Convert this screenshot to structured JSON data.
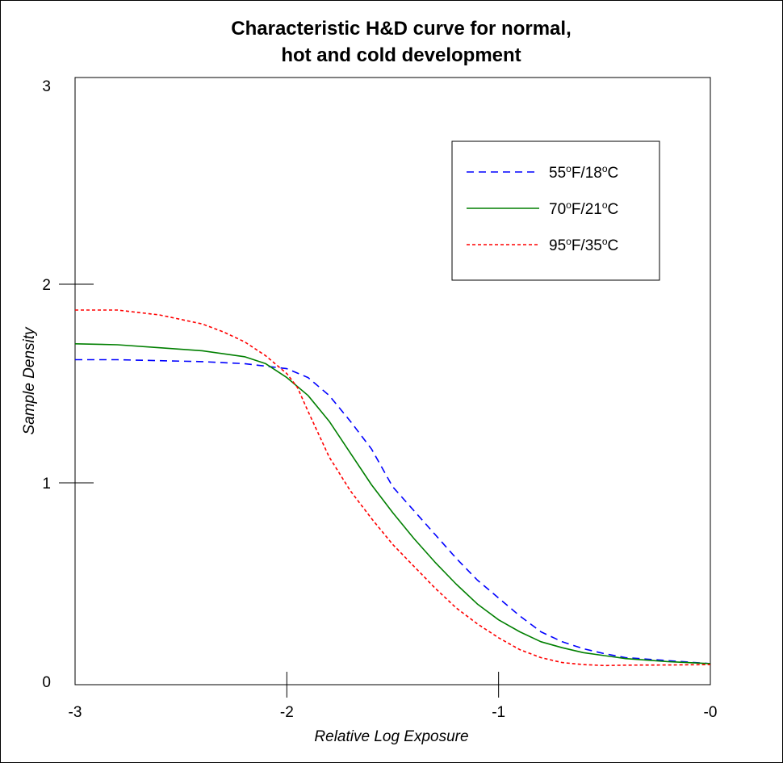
{
  "chart_data": {
    "type": "line",
    "title_lines": [
      "Characteristic H&D curve for normal,",
      "hot  and cold development"
    ],
    "xlabel": "Relative Log Exposure",
    "ylabel": "Sample Density",
    "xlim": [
      -3,
      0
    ],
    "ylim": [
      0,
      3
    ],
    "x_tick_labels": [
      "-3",
      "-2",
      "-1",
      "-0"
    ],
    "y_tick_labels": [
      "0",
      "1",
      "2",
      "3"
    ],
    "grid": false,
    "legend_position": "top-right",
    "series": [
      {
        "name": "55oF/18oC",
        "legend_parts": [
          " 55",
          "o",
          "F/18",
          "o",
          "C"
        ],
        "color": "#0000ff",
        "dash": "dashed",
        "points": [
          [
            -3.0,
            1.62
          ],
          [
            -2.8,
            1.62
          ],
          [
            -2.6,
            1.615
          ],
          [
            -2.4,
            1.61
          ],
          [
            -2.2,
            1.6
          ],
          [
            -2.0,
            1.575
          ],
          [
            -1.9,
            1.53
          ],
          [
            -1.8,
            1.44
          ],
          [
            -1.7,
            1.31
          ],
          [
            -1.6,
            1.17
          ],
          [
            -1.5,
            0.98
          ],
          [
            -1.4,
            0.86
          ],
          [
            -1.3,
            0.74
          ],
          [
            -1.2,
            0.62
          ],
          [
            -1.1,
            0.51
          ],
          [
            -1.0,
            0.42
          ],
          [
            -0.9,
            0.33
          ],
          [
            -0.8,
            0.25
          ],
          [
            -0.7,
            0.2
          ],
          [
            -0.6,
            0.165
          ],
          [
            -0.5,
            0.14
          ],
          [
            -0.4,
            0.12
          ],
          [
            -0.2,
            0.105
          ],
          [
            0.0,
            0.09
          ]
        ]
      },
      {
        "name": "70oF/21oC",
        "legend_parts": [
          " 70",
          "o",
          "F/21",
          "o",
          "C"
        ],
        "color": "#007f00",
        "dash": "solid",
        "points": [
          [
            -3.0,
            1.7
          ],
          [
            -2.8,
            1.695
          ],
          [
            -2.6,
            1.68
          ],
          [
            -2.4,
            1.665
          ],
          [
            -2.2,
            1.635
          ],
          [
            -2.1,
            1.6
          ],
          [
            -2.0,
            1.53
          ],
          [
            -1.9,
            1.44
          ],
          [
            -1.8,
            1.31
          ],
          [
            -1.7,
            1.15
          ],
          [
            -1.6,
            0.99
          ],
          [
            -1.5,
            0.85
          ],
          [
            -1.4,
            0.72
          ],
          [
            -1.3,
            0.6
          ],
          [
            -1.2,
            0.49
          ],
          [
            -1.1,
            0.39
          ],
          [
            -1.0,
            0.31
          ],
          [
            -0.9,
            0.25
          ],
          [
            -0.8,
            0.2
          ],
          [
            -0.7,
            0.17
          ],
          [
            -0.6,
            0.145
          ],
          [
            -0.5,
            0.13
          ],
          [
            -0.4,
            0.115
          ],
          [
            -0.2,
            0.1
          ],
          [
            0.0,
            0.09
          ]
        ]
      },
      {
        "name": "95oF/35oC",
        "legend_parts": [
          "  95",
          "o",
          "F/35",
          "o",
          "C"
        ],
        "color": "#ff0000",
        "dash": "dotted",
        "points": [
          [
            -3.0,
            1.87
          ],
          [
            -2.8,
            1.87
          ],
          [
            -2.6,
            1.845
          ],
          [
            -2.4,
            1.8
          ],
          [
            -2.3,
            1.76
          ],
          [
            -2.2,
            1.71
          ],
          [
            -2.1,
            1.64
          ],
          [
            -2.0,
            1.55
          ],
          [
            -1.95,
            1.48
          ],
          [
            -1.9,
            1.36
          ],
          [
            -1.8,
            1.13
          ],
          [
            -1.7,
            0.96
          ],
          [
            -1.6,
            0.82
          ],
          [
            -1.5,
            0.69
          ],
          [
            -1.4,
            0.58
          ],
          [
            -1.3,
            0.47
          ],
          [
            -1.2,
            0.37
          ],
          [
            -1.1,
            0.29
          ],
          [
            -1.0,
            0.22
          ],
          [
            -0.9,
            0.16
          ],
          [
            -0.8,
            0.12
          ],
          [
            -0.7,
            0.095
          ],
          [
            -0.6,
            0.085
          ],
          [
            -0.5,
            0.08
          ],
          [
            -0.4,
            0.082
          ],
          [
            -0.2,
            0.083
          ],
          [
            0.0,
            0.085
          ]
        ]
      }
    ]
  }
}
